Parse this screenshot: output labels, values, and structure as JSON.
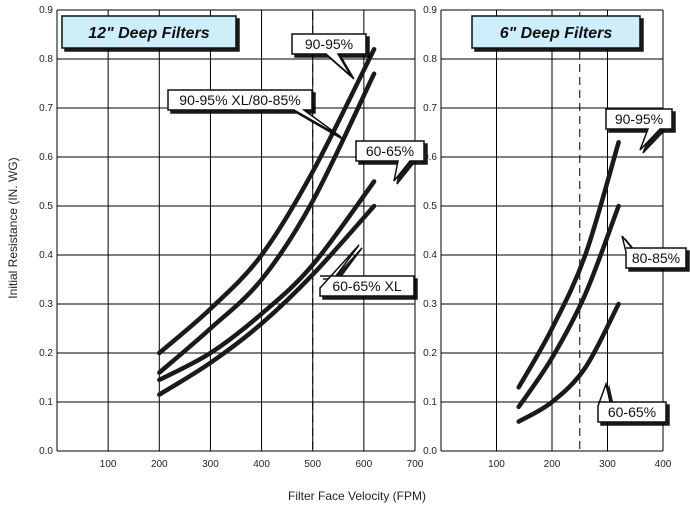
{
  "chart_data": [
    {
      "type": "line",
      "title": "12\" Deep Filters",
      "xlim": [
        0,
        700
      ],
      "ylim": [
        0,
        0.9
      ],
      "x_ticks": [
        "100",
        "200",
        "300",
        "400",
        "500",
        "600",
        "700"
      ],
      "y_ticks": [
        "0.0",
        "0.1",
        "0.2",
        "0.3",
        "0.4",
        "0.5",
        "0.6",
        "0.7",
        "0.8",
        "0.9"
      ],
      "reference_line_x": 500,
      "grid": true,
      "series": [
        {
          "name": "90-95%",
          "x": [
            200,
            300,
            400,
            500,
            620
          ],
          "y": [
            0.2,
            0.29,
            0.4,
            0.57,
            0.82
          ]
        },
        {
          "name": "90-95% XL/80-85%",
          "x": [
            200,
            300,
            400,
            500,
            620
          ],
          "y": [
            0.16,
            0.25,
            0.35,
            0.51,
            0.77
          ]
        },
        {
          "name": "60-65%",
          "x": [
            200,
            300,
            400,
            500,
            620
          ],
          "y": [
            0.145,
            0.2,
            0.28,
            0.38,
            0.55
          ]
        },
        {
          "name": "60-65% XL",
          "x": [
            200,
            300,
            400,
            500,
            620
          ],
          "y": [
            0.115,
            0.18,
            0.26,
            0.36,
            0.5
          ]
        }
      ]
    },
    {
      "type": "line",
      "title": "6\" Deep Filters",
      "xlim": [
        0,
        400
      ],
      "ylim": [
        0,
        0.9
      ],
      "x_ticks": [
        "100",
        "200",
        "300",
        "400"
      ],
      "y_ticks": [
        "0.0",
        "0.1",
        "0.2",
        "0.3",
        "0.4",
        "0.5",
        "0.6",
        "0.7",
        "0.8",
        "0.9"
      ],
      "reference_line_x": 250,
      "grid": true,
      "series": [
        {
          "name": "90-95%",
          "x": [
            140,
            200,
            260,
            320
          ],
          "y": [
            0.13,
            0.25,
            0.4,
            0.63
          ]
        },
        {
          "name": "80-85%",
          "x": [
            140,
            200,
            260,
            320
          ],
          "y": [
            0.09,
            0.19,
            0.32,
            0.5
          ]
        },
        {
          "name": "60-65%",
          "x": [
            140,
            200,
            260,
            320
          ],
          "y": [
            0.06,
            0.1,
            0.17,
            0.3
          ]
        }
      ]
    }
  ],
  "shared": {
    "ylabel": "Initial Resistance (IN. WG)",
    "xlabel": "Filter Face Velocity (FPM)"
  },
  "colors": {
    "title_box_fill": "#cfeefb",
    "curve": "#1a1a1a",
    "grid": "#000000"
  }
}
